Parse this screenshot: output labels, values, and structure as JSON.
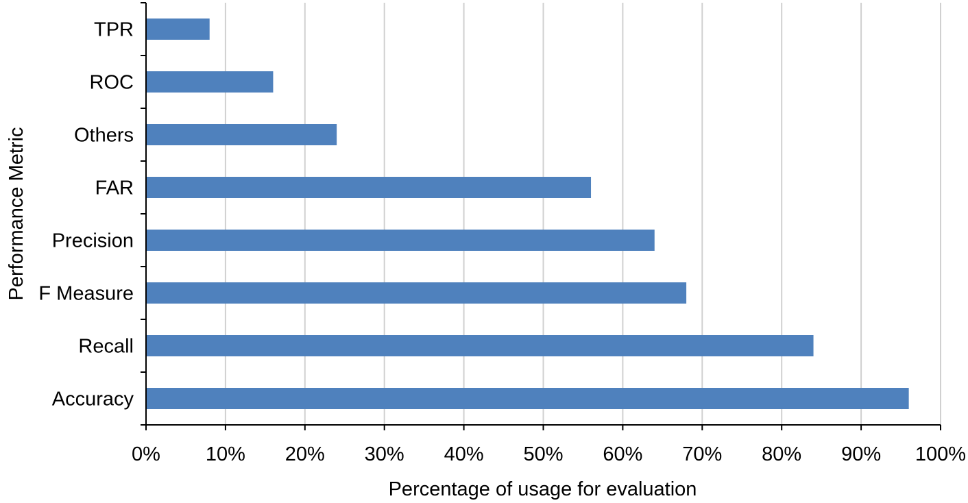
{
  "chart_data": {
    "type": "bar",
    "orientation": "horizontal",
    "categories": [
      "TPR",
      "ROC",
      "Others",
      "FAR",
      "Precision",
      "F Measure",
      "Recall",
      "Accuracy"
    ],
    "values": [
      8,
      16,
      24,
      56,
      64,
      68,
      84,
      96
    ],
    "value_unit": "%",
    "title": "",
    "xlabel": "Percentage of usage for evaluation",
    "ylabel": "Performance Metric",
    "xlim": [
      0,
      100
    ],
    "x_ticks": [
      0,
      10,
      20,
      30,
      40,
      50,
      60,
      70,
      80,
      90,
      100
    ],
    "x_tick_labels": [
      "0%",
      "10%",
      "20%",
      "30%",
      "40%",
      "50%",
      "60%",
      "70%",
      "80%",
      "90%",
      "100%"
    ],
    "grid": "vertical",
    "legend": "none",
    "colors": {
      "bar": "#4f81bd",
      "grid": "#d0d0d0",
      "axis": "#000000"
    }
  }
}
